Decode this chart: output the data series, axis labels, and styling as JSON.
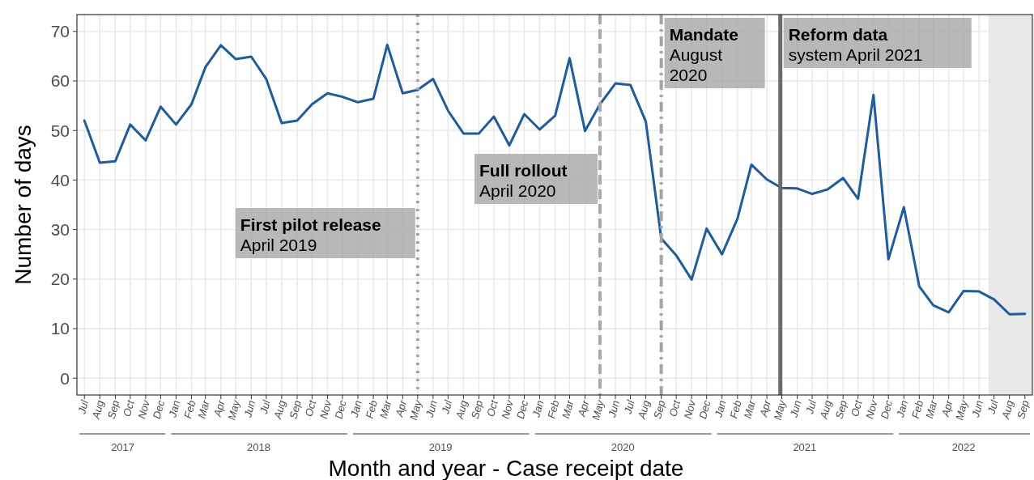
{
  "chart_data": {
    "type": "line",
    "xlabel": "Month and year - Case receipt date",
    "ylabel": "Number of days",
    "x": [
      "2017-07",
      "2017-08",
      "2017-09",
      "2017-10",
      "2017-11",
      "2017-12",
      "2018-01",
      "2018-02",
      "2018-03",
      "2018-04",
      "2018-05",
      "2018-06",
      "2018-07",
      "2018-08",
      "2018-09",
      "2018-10",
      "2018-11",
      "2018-12",
      "2019-01",
      "2019-02",
      "2019-03",
      "2019-04",
      "2019-05",
      "2019-06",
      "2019-07",
      "2019-08",
      "2019-09",
      "2019-10",
      "2019-11",
      "2019-12",
      "2020-01",
      "2020-02",
      "2020-03",
      "2020-04",
      "2020-05",
      "2020-06",
      "2020-07",
      "2020-08",
      "2020-09",
      "2020-10",
      "2020-11",
      "2020-12",
      "2021-01",
      "2021-02",
      "2021-03",
      "2021-04",
      "2021-05",
      "2021-06",
      "2021-07",
      "2021-08",
      "2021-09",
      "2021-10",
      "2021-11",
      "2021-12",
      "2022-01",
      "2022-02",
      "2022-03",
      "2022-04",
      "2022-05",
      "2022-06",
      "2022-07",
      "2022-08",
      "2022-09"
    ],
    "series": [
      {
        "color": "#1f5c99",
        "values": [
          52,
          43.5,
          43.8,
          51.2,
          48,
          54.8,
          51.2,
          55.3,
          62.8,
          67.2,
          64.4,
          64.9,
          60.4,
          51.5,
          52,
          55.3,
          57.5,
          56.8,
          55.7,
          56.4,
          67.3,
          57.5,
          58.2,
          60.4,
          54,
          49.4,
          49.4,
          52.8,
          47,
          53.3,
          50.2,
          53,
          64.6,
          49.9,
          55.3,
          59.5,
          59.2,
          51.8,
          28.2,
          24.8,
          19.9,
          30.2,
          25,
          32.2,
          43.1,
          40.1,
          38.4,
          38.3,
          37.2,
          38.1,
          40.4,
          36.2,
          57.2,
          24,
          34.5,
          18.5,
          14.7,
          13.3,
          17.6,
          17.5,
          15.9,
          12.9,
          13
        ]
      }
    ],
    "xlim": [
      "2017-06-16",
      "2022-09-16"
    ],
    "xticks": [
      {
        "value": "2017-07",
        "label": "Jul"
      },
      {
        "value": "2017-08",
        "label": "Aug"
      },
      {
        "value": "2017-09",
        "label": "Sep"
      },
      {
        "value": "2017-10",
        "label": "Oct"
      },
      {
        "value": "2017-11",
        "label": "Nov"
      },
      {
        "value": "2017-12",
        "label": "Dec"
      },
      {
        "value": "2018-01",
        "label": "Jan"
      },
      {
        "value": "2018-02",
        "label": "Feb"
      },
      {
        "value": "2018-03",
        "label": "Mar"
      },
      {
        "value": "2018-04",
        "label": "Apr"
      },
      {
        "value": "2018-05",
        "label": "May"
      },
      {
        "value": "2018-06",
        "label": "Jun"
      },
      {
        "value": "2018-07",
        "label": "Jul"
      },
      {
        "value": "2018-08",
        "label": "Aug"
      },
      {
        "value": "2018-09",
        "label": "Sep"
      },
      {
        "value": "2018-10",
        "label": "Oct"
      },
      {
        "value": "2018-11",
        "label": "Nov"
      },
      {
        "value": "2018-12",
        "label": "Dec"
      },
      {
        "value": "2019-01",
        "label": "Jan"
      },
      {
        "value": "2019-02",
        "label": "Feb"
      },
      {
        "value": "2019-03",
        "label": "Mar"
      },
      {
        "value": "2019-04",
        "label": "Apr"
      },
      {
        "value": "2019-05",
        "label": "May"
      },
      {
        "value": "2019-06",
        "label": "Jun"
      },
      {
        "value": "2019-07",
        "label": "Jul"
      },
      {
        "value": "2019-08",
        "label": "Aug"
      },
      {
        "value": "2019-09",
        "label": "Sep"
      },
      {
        "value": "2019-10",
        "label": "Oct"
      },
      {
        "value": "2019-11",
        "label": "Nov"
      },
      {
        "value": "2019-12",
        "label": "Dec"
      },
      {
        "value": "2020-01",
        "label": "Jan"
      },
      {
        "value": "2020-02",
        "label": "Feb"
      },
      {
        "value": "2020-03",
        "label": "Mar"
      },
      {
        "value": "2020-04",
        "label": "Apr"
      },
      {
        "value": "2020-05",
        "label": "May"
      },
      {
        "value": "2020-06",
        "label": "Jun"
      },
      {
        "value": "2020-07",
        "label": "Jul"
      },
      {
        "value": "2020-08",
        "label": "Aug"
      },
      {
        "value": "2020-09",
        "label": "Sep"
      },
      {
        "value": "2020-10",
        "label": "Oct"
      },
      {
        "value": "2020-11",
        "label": "Nov"
      },
      {
        "value": "2020-12",
        "label": "Dec"
      },
      {
        "value": "2021-01",
        "label": "Jan"
      },
      {
        "value": "2021-02",
        "label": "Feb"
      },
      {
        "value": "2021-03",
        "label": "Mar"
      },
      {
        "value": "2021-04",
        "label": "Apr"
      },
      {
        "value": "2021-05",
        "label": "May"
      },
      {
        "value": "2021-06",
        "label": "Jun"
      },
      {
        "value": "2021-07",
        "label": "Jul"
      },
      {
        "value": "2021-08",
        "label": "Aug"
      },
      {
        "value": "2021-09",
        "label": "Sep"
      },
      {
        "value": "2021-10",
        "label": "Oct"
      },
      {
        "value": "2021-11",
        "label": "Nov"
      },
      {
        "value": "2021-12",
        "label": "Dec"
      },
      {
        "value": "2022-01",
        "label": "Jan"
      },
      {
        "value": "2022-02",
        "label": "Feb"
      },
      {
        "value": "2022-03",
        "label": "Mar"
      },
      {
        "value": "2022-04",
        "label": "Apr"
      },
      {
        "value": "2022-05",
        "label": "May"
      },
      {
        "value": "2022-06",
        "label": "Jun"
      },
      {
        "value": "2022-07",
        "label": "Jul"
      },
      {
        "value": "2022-08",
        "label": "Aug"
      },
      {
        "value": "2022-09",
        "label": "Sep"
      }
    ],
    "x2ticks": [
      {
        "value": "2017-09-16",
        "label": "2017"
      },
      {
        "value": "2018-06-16",
        "label": "2018"
      },
      {
        "value": "2019-06-16",
        "label": "2019"
      },
      {
        "value": "2020-06-16",
        "label": "2020"
      },
      {
        "value": "2021-06-16",
        "label": "2021"
      },
      {
        "value": "2022-05-01",
        "label": "2022"
      }
    ],
    "x2lim": [
      "2017-06-16",
      "2022-09-16"
    ],
    "ylim": [
      -3.4,
      73.4
    ],
    "yticks": [
      0,
      10,
      20,
      30,
      40,
      50,
      60,
      70
    ],
    "grid": true,
    "line_style": "solid",
    "marker": "none",
    "ref_lines": [
      {
        "axis": "x",
        "value": "2019-05",
        "label": "First pilot release\nApril 2019",
        "color": "#a6a6a6",
        "line_style": "dotted"
      },
      {
        "axis": "x",
        "value": "2020-05",
        "label": "Full rollout\nApril  2020",
        "color": "#a8a8ae",
        "line_style": "dashed"
      },
      {
        "axis": "x",
        "value": "2020-09",
        "label": "Mandate\nAugust\n2020",
        "color": "#a3a3a8",
        "line_style": "dashdot"
      },
      {
        "axis": "x",
        "value": "2021-04-28",
        "label": "Reform data\nsystem April 2021",
        "color": "#6b6b6b",
        "line_style": "solid"
      }
    ],
    "bands": [
      {
        "axis": "x",
        "from": "2022-06-20",
        "to": "2022-09-16",
        "color": "#e8e8e8"
      }
    ]
  }
}
